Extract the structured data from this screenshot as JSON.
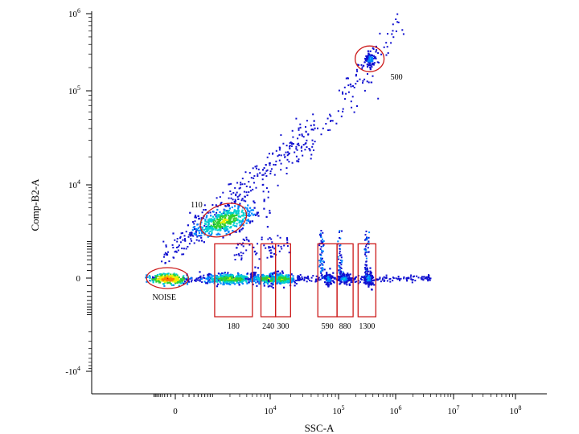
{
  "chart_data": {
    "type": "scatter",
    "subtype": "flow-cytometry density dot plot",
    "xlabel": "SSC-A",
    "ylabel": "Comp-B2-A",
    "x_scale": "biexponential",
    "y_scale": "biexponential",
    "x_ticks": [
      {
        "value": 0,
        "base": "0",
        "exp": ""
      },
      {
        "value": 10000,
        "base": "10",
        "exp": "4"
      },
      {
        "value": 100000,
        "base": "10",
        "exp": "5"
      },
      {
        "value": 1000000,
        "base": "10",
        "exp": "6"
      },
      {
        "value": 10000000,
        "base": "10",
        "exp": "7"
      },
      {
        "value": 100000000,
        "base": "10",
        "exp": "8"
      }
    ],
    "y_ticks": [
      {
        "value": 1000000,
        "base": "10",
        "exp": "6"
      },
      {
        "value": 100000,
        "base": "10",
        "exp": "5"
      },
      {
        "value": 10000,
        "base": "10",
        "exp": "4"
      },
      {
        "value": 0,
        "base": "0",
        "exp": ""
      },
      {
        "value": -10000,
        "base": "-10",
        "exp": "4"
      }
    ],
    "gates": [
      {
        "label": "500",
        "shape": "ellipse",
        "x_center": 350000,
        "y_center": 260000
      },
      {
        "label": "110",
        "shape": "ellipse",
        "x_center": 1500,
        "y_center": 2400
      },
      {
        "label": "NOISE",
        "shape": "ellipse",
        "x_center": -200,
        "y_center": 0
      },
      {
        "label": "180",
        "shape": "rectangle",
        "x_range": [
          1000,
          5000
        ],
        "y_range": [
          -1000,
          800
        ]
      },
      {
        "label": "240",
        "shape": "rectangle",
        "x_range": [
          7000,
          12000
        ],
        "y_range": [
          -1000,
          800
        ]
      },
      {
        "label": "300",
        "shape": "rectangle",
        "x_range": [
          12000,
          20000
        ],
        "y_range": [
          -1000,
          800
        ]
      },
      {
        "label": "590",
        "shape": "rectangle",
        "x_range": [
          50000,
          95000
        ],
        "y_range": [
          -1000,
          800
        ]
      },
      {
        "label": "880",
        "shape": "rectangle",
        "x_range": [
          95000,
          180000
        ],
        "y_range": [
          -1000,
          800
        ]
      },
      {
        "label": "1300",
        "shape": "rectangle",
        "x_range": [
          220000,
          450000
        ],
        "y_range": [
          -1000,
          800
        ]
      }
    ],
    "populations": [
      {
        "gate": "NOISE",
        "x_center": -200,
        "y_center": 0,
        "peak": "red"
      },
      {
        "gate": "180",
        "x_center": 2000,
        "y_center": 0,
        "peak": "yellow"
      },
      {
        "gate": "240",
        "x_center": 9000,
        "y_center": 0,
        "peak": "yellow"
      },
      {
        "gate": "300",
        "x_center": 15000,
        "y_center": 0,
        "peak": "yellow"
      },
      {
        "gate": "590",
        "x_center": 70000,
        "y_center": 0,
        "peak": "cyan"
      },
      {
        "gate": "880",
        "x_center": 120000,
        "y_center": 0,
        "peak": "cyan"
      },
      {
        "gate": "1300",
        "x_center": 330000,
        "y_center": 0,
        "peak": "cyan"
      },
      {
        "gate": "110",
        "x_center": 1500,
        "y_center": 2400,
        "peak": "yellow"
      },
      {
        "gate": "500",
        "x_center": 350000,
        "y_center": 260000,
        "peak": "cyan"
      }
    ],
    "density_colors": [
      "#1010d0",
      "#0088ff",
      "#00d0d0",
      "#30d030",
      "#f0f000",
      "#ff8000",
      "#e00000"
    ],
    "gate_color": "#cc1a1a",
    "grid": false,
    "legend": "none"
  }
}
